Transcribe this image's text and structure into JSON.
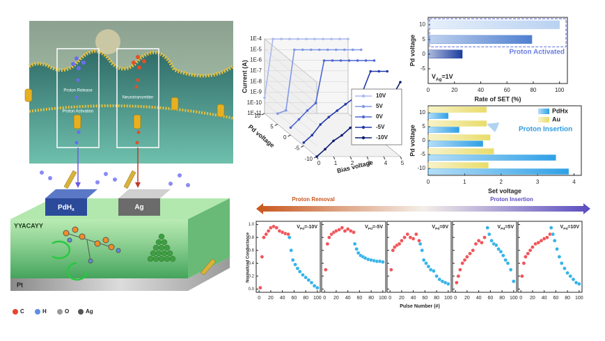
{
  "illustration": {
    "proton_release": "Proton Release",
    "neurotransmitter": "Neurotransmitter",
    "proton_activation": "Proton Activation",
    "pdhx": [
      "PdH",
      "x"
    ],
    "ag": "Ag",
    "peptide": "YYACAYY",
    "substrate": "Pt",
    "legend": [
      "C",
      "H",
      "O",
      "Ag"
    ]
  },
  "figure_labels": {
    "proton_removal": "Proton Removal",
    "proton_insertion": "Proton Insertion",
    "pulse_axis": "Pulse Number (#)",
    "conductance_axis": "Normalized Conductance"
  },
  "chart_data": [
    {
      "type": "line",
      "ylabel": "Current (A)",
      "xlabel": "Bias voltage",
      "zlabel": "Pd voltage",
      "log_y": true,
      "x": [
        0,
        0.5,
        1,
        1.5,
        2,
        2.5,
        3,
        3.5,
        4,
        4.5,
        5
      ],
      "xlim": [
        0,
        5
      ],
      "xticks": [
        0,
        1,
        2,
        3,
        4,
        5
      ],
      "ylim": [
        1e-11,
        0.0001
      ],
      "yticks": [
        {
          "value": 0.0001,
          "label": "1E-4"
        },
        {
          "value": 1e-05,
          "label": "1E-5"
        },
        {
          "value": 1e-06,
          "label": "1E-6"
        },
        {
          "value": 1e-07,
          "label": "1E-7"
        },
        {
          "value": 1e-08,
          "label": "1E-8"
        },
        {
          "value": 1e-09,
          "label": "1E-9"
        },
        {
          "value": 1e-10,
          "label": "1E-10"
        },
        {
          "value": 1e-11,
          "label": "1E-11"
        }
      ],
      "zlim": [
        -10,
        10
      ],
      "zticks": [
        -10,
        -5,
        0,
        5,
        10
      ],
      "series": [
        {
          "name": "10V",
          "color": "#a9b9ef",
          "values": [
            3e-10,
            0.0001,
            0.0001,
            0.0001,
            0.0001,
            0.0001,
            0.0001,
            0.0001,
            0.0001,
            0.0001,
            0.0001
          ]
        },
        {
          "name": "5V",
          "color": "#8098e6",
          "values": [
            1e-10,
            2e-10,
            0.0001,
            0.0001,
            0.0001,
            0.0001,
            0.0001,
            0.0001,
            0.0001,
            0.0001,
            0.0001
          ]
        },
        {
          "name": "0V",
          "color": "#4d66d4",
          "values": [
            5e-11,
            3e-10,
            2e-09,
            1e-08,
            0.0001,
            0.0001,
            0.0001,
            0.0001,
            0.0001,
            0.0001,
            0.0001
          ]
        },
        {
          "name": "-5V",
          "color": "#2238a8",
          "values": [
            2e-11,
            1e-10,
            1e-09,
            5e-09,
            2e-08,
            8e-08,
            3e-07,
            1e-06,
            0.0001,
            0.0001,
            0.0001
          ]
        },
        {
          "name": "-10V",
          "color": "#0c1c72",
          "values": [
            1e-11,
            5e-11,
            3e-10,
            1e-09,
            5e-09,
            2e-08,
            8e-08,
            3e-07,
            1e-06,
            4e-06,
            0.0001
          ]
        }
      ]
    },
    {
      "type": "bar",
      "orientation": "horizontal",
      "xlabel": "Rate of SET (%)",
      "ylabel": "Pd voltage",
      "y": [
        10,
        5,
        0
      ],
      "values": [
        100,
        79,
        26
      ],
      "colors": [
        "#b9d2f1",
        "#4f7fd0",
        "#1b3d9e"
      ],
      "xlim": [
        0,
        106
      ],
      "xticks": [
        0,
        20,
        40,
        60,
        80,
        100
      ],
      "ylim": [
        -10,
        12.5
      ],
      "yticks": [
        -5,
        0,
        5,
        10
      ],
      "annotation": "Proton Activated",
      "condition": [
        "V",
        "Ag",
        "=1V"
      ]
    },
    {
      "type": "bar",
      "orientation": "horizontal",
      "xlabel": "Set voltage",
      "ylabel": "Pd voltage",
      "y": [
        10,
        5,
        0,
        -5,
        -10
      ],
      "series": [
        {
          "name": "PdHx",
          "color": "#2fa0e6",
          "values": [
            0.55,
            0.85,
            1.5,
            3.5,
            3.85
          ]
        },
        {
          "name": "Au",
          "color": "#e9dc6a",
          "values": [
            1.6,
            1.6,
            1.7,
            1.8,
            1.65
          ]
        }
      ],
      "xlim": [
        0,
        4.2
      ],
      "xticks": [
        0,
        1,
        2,
        3,
        4
      ],
      "ylim": [
        -12.5,
        12.5
      ],
      "yticks": [
        -10,
        -5,
        0,
        5,
        10
      ],
      "annotation": "Proton Insertion"
    },
    {
      "type": "scatter",
      "label_parts": [
        "V",
        "Pd",
        "=-10V"
      ],
      "xlim": [
        -5,
        105
      ],
      "xticks": [
        0,
        20,
        40,
        60,
        80,
        100
      ],
      "ylim": [
        -0.05,
        1.05
      ],
      "yticks": [
        {
          "value": 0,
          "label": "0.0"
        },
        {
          "value": 0.2,
          "label": "0.2"
        },
        {
          "value": 0.4,
          "label": "0.4"
        },
        {
          "value": 0.6,
          "label": "0.6"
        },
        {
          "value": 0.8,
          "label": "0.8"
        },
        {
          "value": 1,
          "label": "1.0"
        }
      ],
      "series": [
        {
          "color": "#f0555a",
          "x": [
            2,
            5,
            8,
            12,
            16,
            20,
            25,
            30,
            35,
            40,
            45,
            50
          ],
          "values": [
            0.02,
            0.5,
            0.8,
            0.85,
            0.9,
            0.95,
            0.97,
            0.95,
            0.9,
            0.88,
            0.86,
            0.85
          ]
        },
        {
          "color": "#36b4e8",
          "x": [
            52,
            55,
            58,
            62,
            66,
            70,
            75,
            80,
            85,
            90,
            95,
            100
          ],
          "values": [
            0.8,
            0.6,
            0.45,
            0.38,
            0.32,
            0.27,
            0.22,
            0.18,
            0.14,
            0.1,
            0.05,
            0.02
          ]
        }
      ]
    },
    {
      "type": "scatter",
      "label_parts": [
        "V",
        "Pd",
        "=-5V"
      ],
      "xlim": [
        -5,
        105
      ],
      "xticks": [
        0,
        20,
        40,
        60,
        80,
        100
      ],
      "ylim": [
        -0.05,
        1.05
      ],
      "yticks": [
        {
          "value": 0,
          "label": "0.0"
        },
        {
          "value": 0.2,
          "label": "0.2"
        },
        {
          "value": 0.4,
          "label": "0.4"
        },
        {
          "value": 0.6,
          "label": "0.6"
        },
        {
          "value": 0.8,
          "label": "0.8"
        },
        {
          "value": 1,
          "label": "1.0"
        }
      ],
      "series": [
        {
          "color": "#f0555a",
          "x": [
            2,
            5,
            8,
            12,
            16,
            20,
            25,
            30,
            35,
            40,
            45,
            50
          ],
          "values": [
            0.3,
            0.7,
            0.8,
            0.85,
            0.88,
            0.9,
            0.92,
            0.95,
            0.9,
            0.93,
            0.9,
            0.88
          ]
        },
        {
          "color": "#36b4e8",
          "x": [
            52,
            55,
            58,
            62,
            66,
            70,
            75,
            80,
            85,
            90,
            95,
            100
          ],
          "values": [
            0.7,
            0.62,
            0.56,
            0.52,
            0.5,
            0.48,
            0.46,
            0.45,
            0.44,
            0.43,
            0.43,
            0.42
          ]
        }
      ]
    },
    {
      "type": "scatter",
      "label_parts": [
        "V",
        "Pd",
        "=0V"
      ],
      "xlim": [
        -5,
        105
      ],
      "xticks": [
        0,
        20,
        40,
        60,
        80,
        100
      ],
      "ylim": [
        -0.05,
        1.05
      ],
      "yticks": [
        {
          "value": 0,
          "label": "0.0"
        },
        {
          "value": 0.2,
          "label": "0.2"
        },
        {
          "value": 0.4,
          "label": "0.4"
        },
        {
          "value": 0.6,
          "label": "0.6"
        },
        {
          "value": 0.8,
          "label": "0.8"
        },
        {
          "value": 1,
          "label": "1.0"
        }
      ],
      "series": [
        {
          "color": "#f0555a",
          "x": [
            2,
            5,
            8,
            12,
            16,
            20,
            25,
            30,
            35,
            40,
            45,
            50
          ],
          "values": [
            0.3,
            0.6,
            0.65,
            0.68,
            0.7,
            0.75,
            0.8,
            0.85,
            0.8,
            0.78,
            0.85,
            0.75
          ]
        },
        {
          "color": "#36b4e8",
          "x": [
            52,
            55,
            58,
            62,
            66,
            70,
            75,
            80,
            85,
            90,
            95,
            100
          ],
          "values": [
            0.7,
            0.6,
            0.45,
            0.4,
            0.35,
            0.3,
            0.28,
            0.2,
            0.15,
            0.12,
            0.1,
            0.08
          ]
        }
      ]
    },
    {
      "type": "scatter",
      "label_parts": [
        "V",
        "Pd",
        "=5V"
      ],
      "xlim": [
        -5,
        105
      ],
      "xticks": [
        0,
        20,
        40,
        60,
        80,
        100
      ],
      "ylim": [
        -0.05,
        1.05
      ],
      "yticks": [
        {
          "value": 0,
          "label": "0.0"
        },
        {
          "value": 0.2,
          "label": "0.2"
        },
        {
          "value": 0.4,
          "label": "0.4"
        },
        {
          "value": 0.6,
          "label": "0.6"
        },
        {
          "value": 0.8,
          "label": "0.8"
        },
        {
          "value": 1,
          "label": "1.0"
        }
      ],
      "series": [
        {
          "color": "#f0555a",
          "x": [
            2,
            5,
            8,
            12,
            16,
            20,
            25,
            30,
            35,
            40,
            45,
            50
          ],
          "values": [
            0.1,
            0.2,
            0.3,
            0.4,
            0.45,
            0.5,
            0.55,
            0.6,
            0.7,
            0.75,
            0.72,
            0.8
          ]
        },
        {
          "color": "#36b4e8",
          "x": [
            55,
            58,
            62,
            66,
            70,
            74,
            78,
            82,
            86,
            90,
            95,
            100
          ],
          "values": [
            0.95,
            0.85,
            0.75,
            0.7,
            0.68,
            0.62,
            0.58,
            0.52,
            0.45,
            0.4,
            0.3,
            0.12
          ]
        }
      ]
    },
    {
      "type": "scatter",
      "label_parts": [
        "V",
        "Pd",
        "=10V"
      ],
      "xlim": [
        -5,
        105
      ],
      "xticks": [
        0,
        20,
        40,
        60,
        80,
        100
      ],
      "ylim": [
        -0.05,
        1.05
      ],
      "yticks": [
        {
          "value": 0,
          "label": "0.0"
        },
        {
          "value": 0.2,
          "label": "0.2"
        },
        {
          "value": 0.4,
          "label": "0.4"
        },
        {
          "value": 0.6,
          "label": "0.6"
        },
        {
          "value": 0.8,
          "label": "0.8"
        },
        {
          "value": 1,
          "label": "1.0"
        }
      ],
      "series": [
        {
          "color": "#f0555a",
          "x": [
            2,
            5,
            8,
            12,
            16,
            20,
            25,
            30,
            35,
            40,
            45,
            50
          ],
          "values": [
            0.2,
            0.4,
            0.5,
            0.55,
            0.6,
            0.65,
            0.7,
            0.72,
            0.75,
            0.78,
            0.8,
            0.85
          ]
        },
        {
          "color": "#36b4e8",
          "x": [
            52,
            55,
            58,
            62,
            66,
            70,
            75,
            80,
            85,
            90,
            95,
            100
          ],
          "values": [
            0.95,
            0.85,
            0.75,
            0.62,
            0.5,
            0.4,
            0.32,
            0.25,
            0.2,
            0.15,
            0.1,
            0.08
          ]
        }
      ]
    }
  ]
}
